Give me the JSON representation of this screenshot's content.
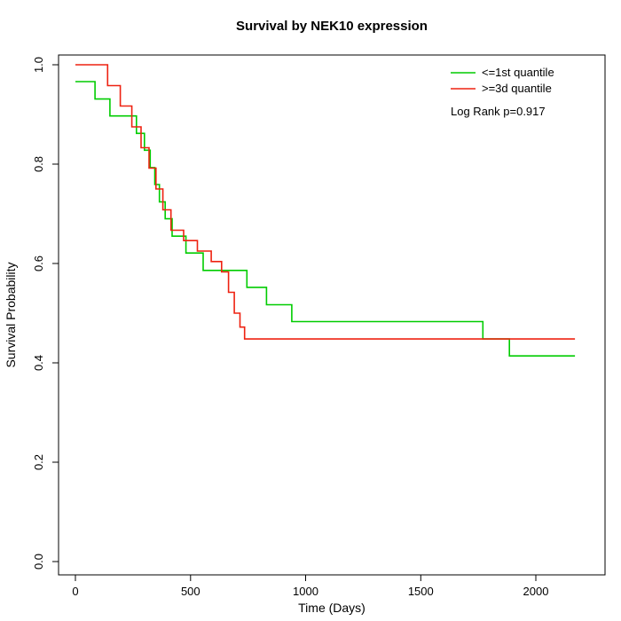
{
  "chart_data": {
    "type": "line",
    "subtype": "kaplan-meier-step",
    "title": "Survival by NEK10 expression",
    "xlabel": "Time (Days)",
    "ylabel": "Survival Probability",
    "xlim": [
      0,
      2200
    ],
    "ylim": [
      0.0,
      1.0
    ],
    "x_ticks": [
      0,
      500,
      1000,
      1500,
      2000
    ],
    "x_tick_labels": [
      "0",
      "500",
      "1000",
      "1500",
      "2000"
    ],
    "y_ticks": [
      0.0,
      0.2,
      0.4,
      0.6,
      0.8,
      1.0
    ],
    "y_tick_labels": [
      "0.0",
      "0.2",
      "0.4",
      "0.6",
      "0.8",
      "1.0"
    ],
    "grid": false,
    "legend": {
      "position": "top-right",
      "entries": [
        {
          "label": "<=1st quantile",
          "color": "#00cc00"
        },
        {
          "label": ">=3d quantile",
          "color": "#ee2211"
        }
      ]
    },
    "annotation": "Log Rank p=0.917",
    "series": [
      {
        "name": "<=1st quantile",
        "color": "#00cc00",
        "points": [
          [
            0,
            0.966
          ],
          [
            85,
            0.931
          ],
          [
            150,
            0.897
          ],
          [
            265,
            0.862
          ],
          [
            300,
            0.828
          ],
          [
            325,
            0.793
          ],
          [
            345,
            0.759
          ],
          [
            365,
            0.724
          ],
          [
            390,
            0.69
          ],
          [
            420,
            0.655
          ],
          [
            480,
            0.621
          ],
          [
            555,
            0.586
          ],
          [
            745,
            0.552
          ],
          [
            830,
            0.517
          ],
          [
            940,
            0.483
          ],
          [
            1770,
            0.448
          ],
          [
            1885,
            0.414
          ],
          [
            2170,
            0.414
          ]
        ]
      },
      {
        "name": ">=3d quantile",
        "color": "#ee2211",
        "points": [
          [
            0,
            1.0
          ],
          [
            140,
            0.958
          ],
          [
            195,
            0.917
          ],
          [
            245,
            0.875
          ],
          [
            285,
            0.833
          ],
          [
            320,
            0.792
          ],
          [
            350,
            0.75
          ],
          [
            380,
            0.708
          ],
          [
            415,
            0.667
          ],
          [
            470,
            0.646
          ],
          [
            530,
            0.625
          ],
          [
            590,
            0.604
          ],
          [
            635,
            0.583
          ],
          [
            665,
            0.542
          ],
          [
            690,
            0.5
          ],
          [
            715,
            0.472
          ],
          [
            735,
            0.448
          ],
          [
            2170,
            0.448
          ]
        ]
      }
    ]
  }
}
